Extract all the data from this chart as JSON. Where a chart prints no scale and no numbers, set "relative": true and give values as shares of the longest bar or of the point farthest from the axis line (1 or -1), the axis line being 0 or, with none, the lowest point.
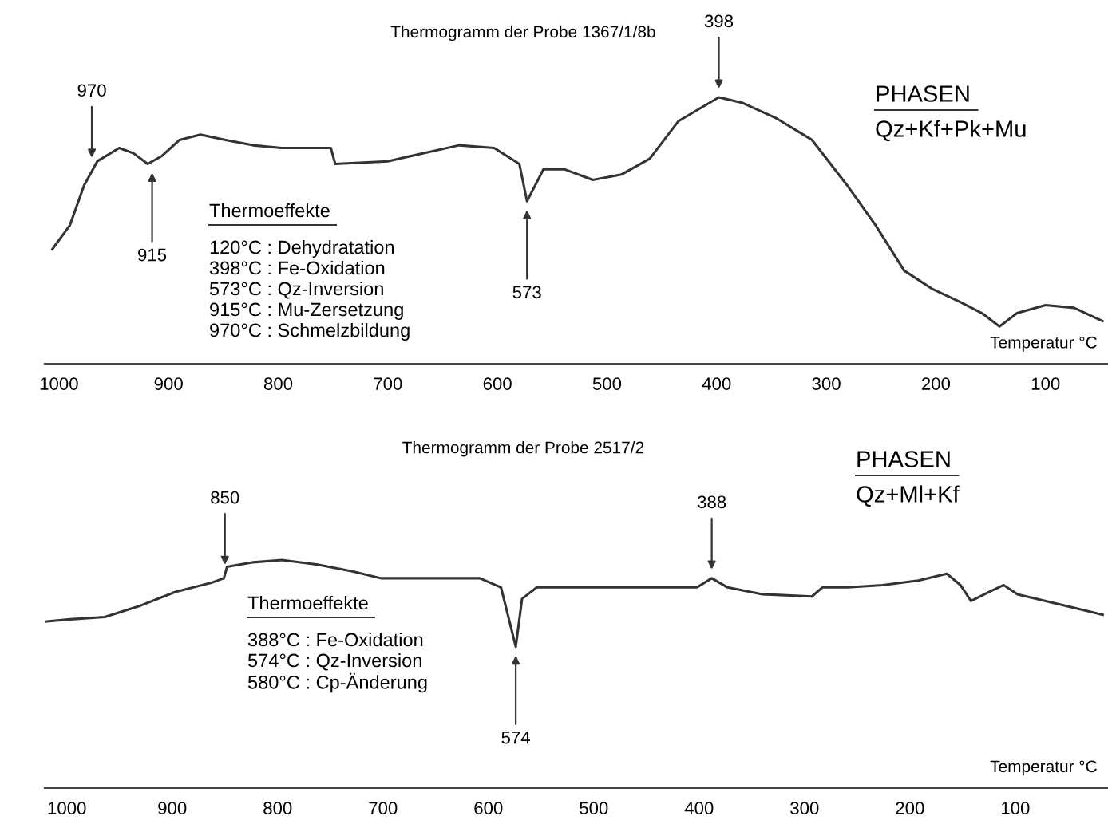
{
  "chart_data": [
    {
      "type": "line",
      "relative": true,
      "title": "Thermogramm der Probe 1367/1/8b",
      "xlabel": "Temperatur °C",
      "tick_labels": "x",
      "color": "#333333",
      "xlim": [
        1013,
        43
      ],
      "xticks": [
        1000,
        900,
        800,
        700,
        600,
        500,
        400,
        300,
        200,
        100
      ],
      "x": [
        1006,
        990,
        977,
        965,
        945,
        932,
        919,
        906,
        890,
        871,
        848,
        823,
        797,
        752,
        748,
        700,
        668,
        635,
        603,
        580,
        573,
        558,
        539,
        513,
        487,
        461,
        435,
        398,
        377,
        345,
        313,
        281,
        255,
        229,
        203,
        177,
        158,
        142,
        126,
        100,
        74,
        48
      ],
      "values": [
        0.43,
        0.52,
        0.67,
        0.76,
        0.81,
        0.79,
        0.75,
        0.78,
        0.84,
        0.86,
        0.84,
        0.82,
        0.81,
        0.81,
        0.75,
        0.76,
        0.79,
        0.82,
        0.81,
        0.75,
        0.61,
        0.73,
        0.73,
        0.69,
        0.71,
        0.77,
        0.91,
        1.0,
        0.98,
        0.92,
        0.84,
        0.67,
        0.52,
        0.35,
        0.28,
        0.23,
        0.19,
        0.14,
        0.19,
        0.22,
        0.21,
        0.16
      ],
      "annotations": [
        {
          "text": "970",
          "x": 970,
          "y": 0.74
        },
        {
          "text": "915",
          "x": 915,
          "y": 0.75
        },
        {
          "text": "573",
          "x": 573,
          "y": 0.61
        },
        {
          "text": "398",
          "x": 398,
          "y": 1.0
        },
        "PHASEN",
        "Qz+Kf+Pk+Mu",
        "Thermoeffekte",
        "120°C : Dehydratation",
        "398°C : Fe-Oxidation",
        "573°C : Qz-Inversion",
        "915°C : Mu-Zersetzung",
        "970°C : Schmelzbildung"
      ]
    },
    {
      "type": "line",
      "relative": true,
      "title": "Thermogramm der Probe 2517/2",
      "xlabel": "Temperatur °C",
      "tick_labels": "x",
      "color": "#333333",
      "xlim": [
        1021,
        12
      ],
      "xticks": [
        1000,
        900,
        800,
        700,
        600,
        500,
        400,
        300,
        200,
        100
      ],
      "x": [
        1021,
        997,
        964,
        930,
        897,
        863,
        851,
        848,
        823,
        796,
        762,
        729,
        702,
        662,
        608,
        588,
        574,
        568,
        554,
        494,
        447,
        402,
        388,
        373,
        340,
        293,
        283,
        259,
        226,
        192,
        165,
        152,
        142,
        125,
        111,
        98,
        71,
        44,
        17
      ],
      "values": [
        0.73,
        0.74,
        0.75,
        0.8,
        0.86,
        0.9,
        0.92,
        0.97,
        0.99,
        1.0,
        0.98,
        0.95,
        0.92,
        0.92,
        0.92,
        0.88,
        0.62,
        0.83,
        0.88,
        0.88,
        0.88,
        0.88,
        0.92,
        0.88,
        0.85,
        0.84,
        0.88,
        0.88,
        0.89,
        0.91,
        0.94,
        0.89,
        0.82,
        0.86,
        0.89,
        0.85,
        0.82,
        0.79,
        0.76
      ],
      "annotations": [
        {
          "text": "850",
          "x": 850,
          "y": 0.94
        },
        {
          "text": "388",
          "x": 388,
          "y": 0.92
        },
        {
          "text": "574",
          "x": 574,
          "y": 0.62
        },
        "PHASEN",
        "Qz+Ml+Kf",
        "Thermoeffekte",
        "388°C : Fe-Oxidation",
        "574°C : Qz-Inversion",
        "580°C : Cp-Änderung"
      ]
    }
  ]
}
